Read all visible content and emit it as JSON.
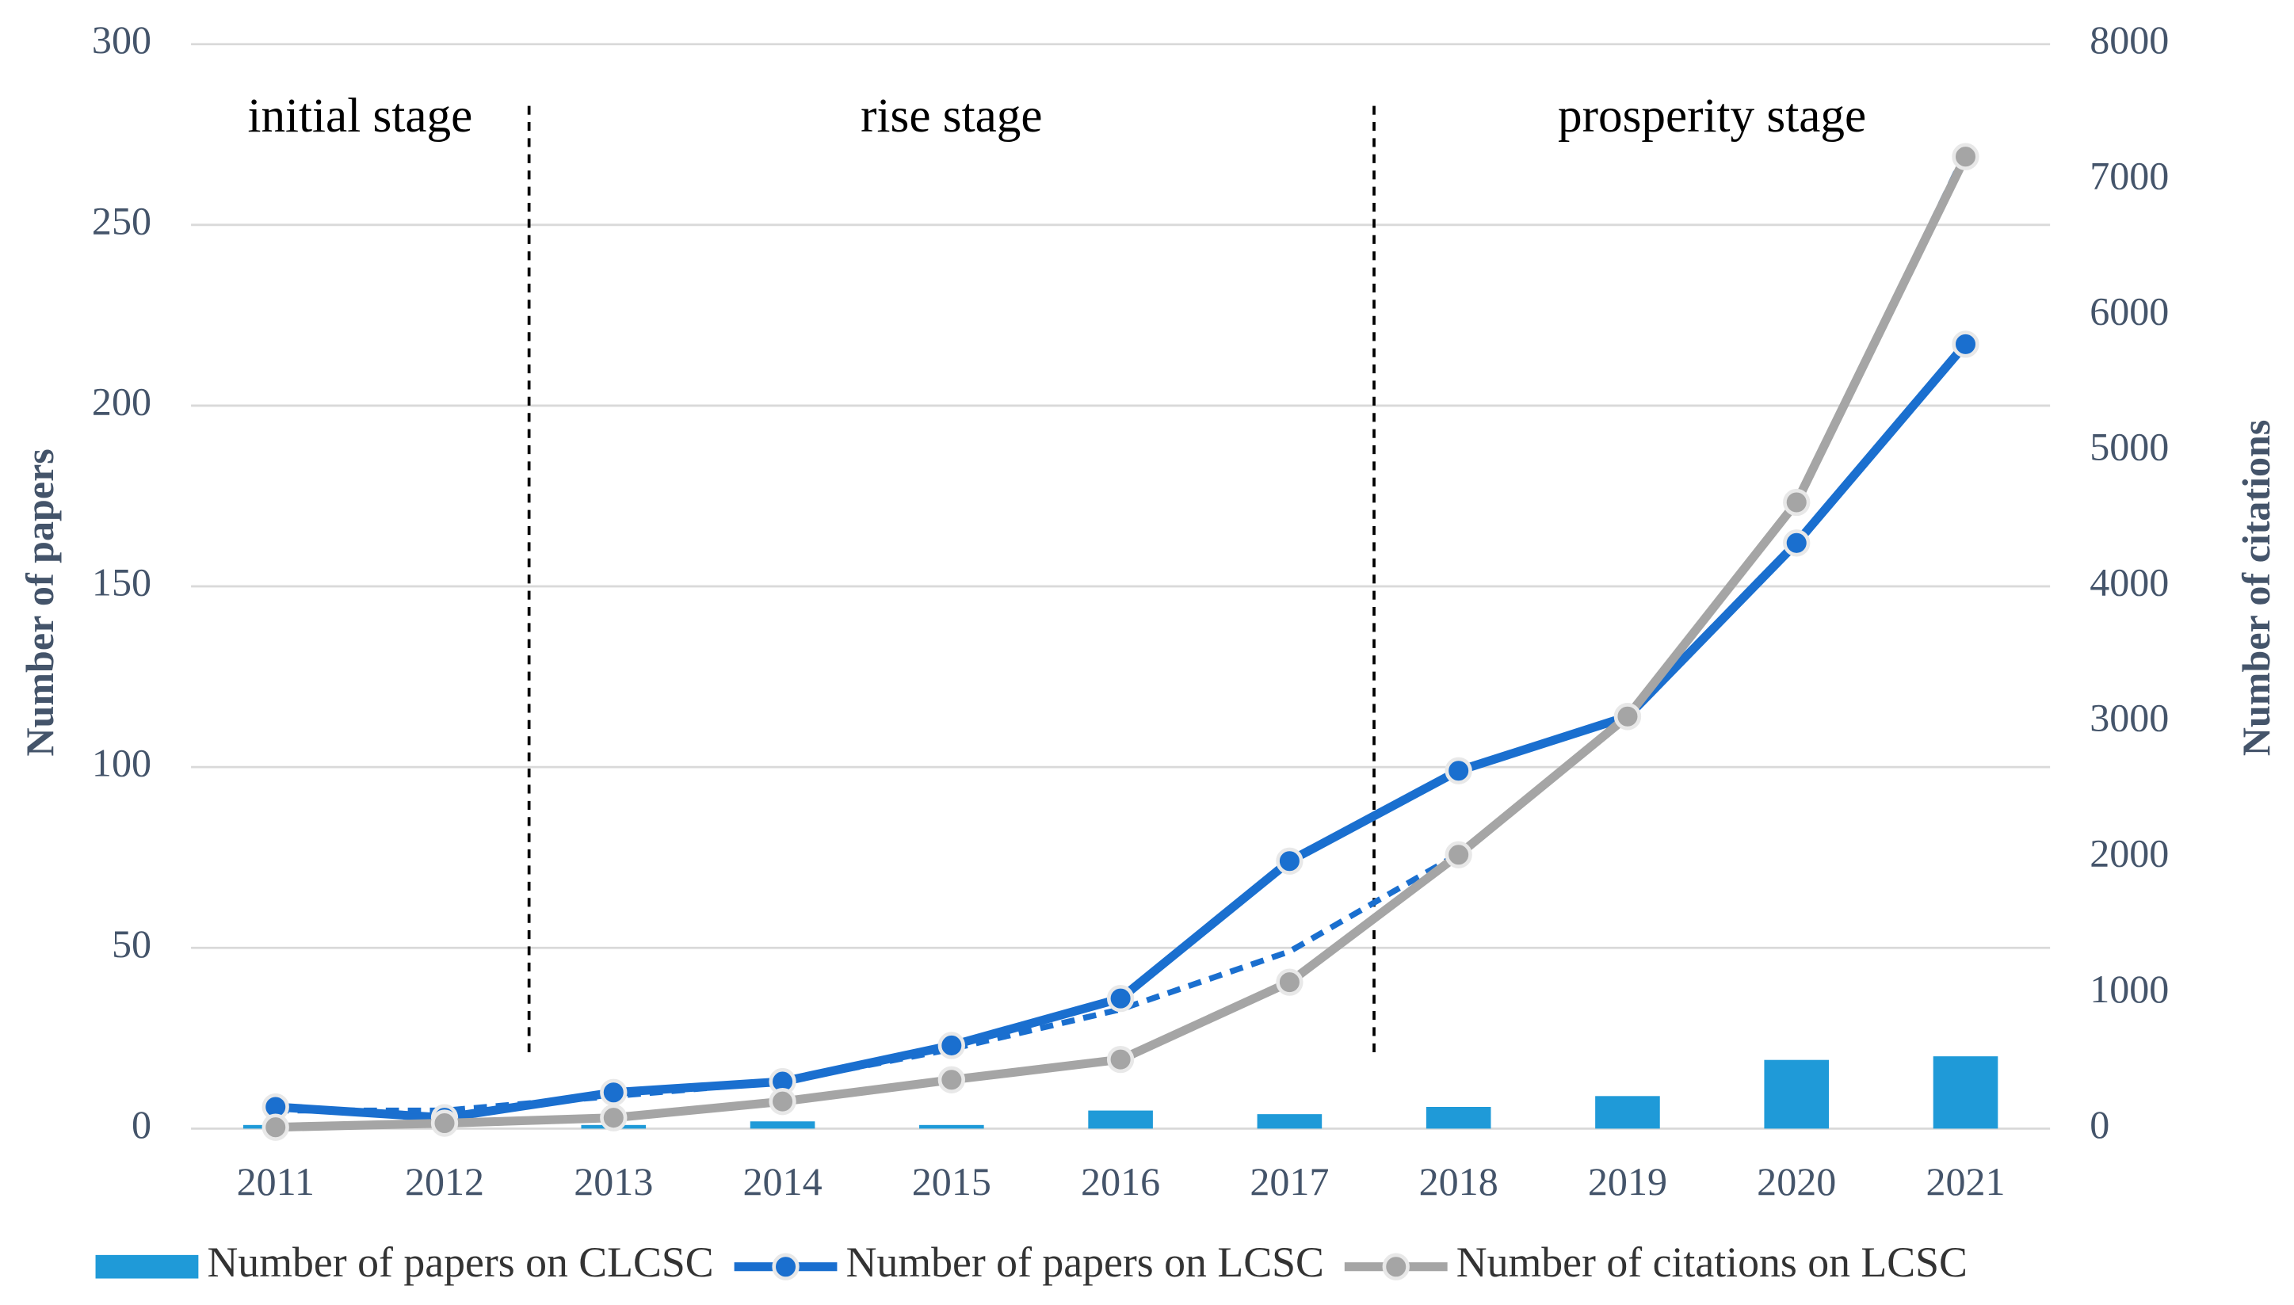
{
  "chart_data": {
    "type": "bar-line",
    "ylabel": "Number of papers",
    "y2label": "Number of citations",
    "categories": [
      "2011",
      "2012",
      "2013",
      "2014",
      "2015",
      "2016",
      "2017",
      "2018",
      "2019",
      "2020",
      "2021"
    ],
    "ylim": [
      0,
      300
    ],
    "yticks": [
      0,
      50,
      100,
      150,
      200,
      250,
      300
    ],
    "y2lim": [
      0,
      8000
    ],
    "y2ticks": [
      0,
      1000,
      2000,
      3000,
      4000,
      5000,
      6000,
      7000,
      8000
    ],
    "grid": true,
    "legend": "bottom",
    "stages": [
      {
        "label": "initial stage",
        "from": "2011",
        "to": "2012"
      },
      {
        "label": "rise stage",
        "from": "2013",
        "to": "2017"
      },
      {
        "label": "prosperity stage",
        "from": "2018",
        "to": "2021"
      }
    ],
    "series": [
      {
        "name": "Number of papers on CLCSC",
        "type": "bar",
        "color": "#1f9ad8",
        "values": [
          1,
          0,
          1,
          2,
          1,
          5,
          4,
          6,
          9,
          19,
          20
        ]
      },
      {
        "name": "Number of papers on LCSC",
        "type": "line",
        "color": "#1a6fcf",
        "values": [
          6,
          3,
          10,
          13,
          23,
          36,
          74,
          99,
          114,
          162,
          217
        ],
        "trend_values": [
          5,
          5,
          9,
          13,
          22,
          33,
          49,
          76,
          114,
          173,
          270
        ]
      },
      {
        "name": "Number of citations on LCSC",
        "type": "line",
        "color": "#a5a5a5",
        "axis": "y2",
        "values": [
          10,
          40,
          80,
          200,
          360,
          510,
          1080,
          2020,
          3040,
          4620,
          7170
        ]
      }
    ]
  }
}
